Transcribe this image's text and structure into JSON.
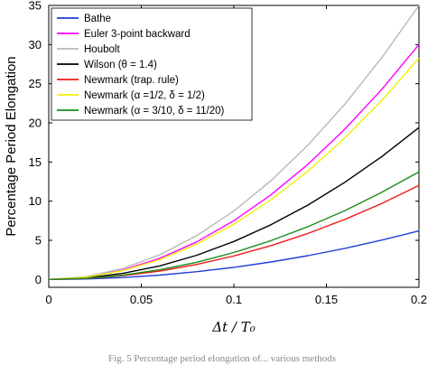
{
  "chart_data": {
    "type": "line",
    "title": "",
    "xlabel": "Δt / T₀",
    "ylabel": "Percentage  Period  Elongation",
    "xlim": [
      0,
      0.2
    ],
    "ylim": [
      -1,
      35
    ],
    "x_ticks": [
      0,
      0.05,
      0.1,
      0.15,
      0.2
    ],
    "x_tick_labels": [
      "0",
      "0.05",
      "0.1",
      "0.15",
      "0.2"
    ],
    "y_ticks": [
      0,
      5,
      10,
      15,
      20,
      25,
      30,
      35
    ],
    "y_tick_labels": [
      "0",
      "5",
      "10",
      "15",
      "20",
      "25",
      "30",
      "35"
    ],
    "grid": false,
    "legend_position": "top-left",
    "x": [
      0,
      0.02,
      0.04,
      0.06,
      0.08,
      0.1,
      0.12,
      0.14,
      0.16,
      0.18,
      0.2
    ],
    "series": [
      {
        "name": "Bathe",
        "color": "#1f3fd6",
        "values": [
          0,
          0.06,
          0.25,
          0.56,
          1.0,
          1.55,
          2.23,
          3.04,
          3.97,
          5.03,
          6.2
        ]
      },
      {
        "name": "Euler 3-point backward",
        "color": "#ff00ff",
        "values": [
          0,
          0.3,
          1.2,
          2.7,
          4.8,
          7.5,
          10.8,
          14.7,
          19.2,
          24.3,
          30.0
        ]
      },
      {
        "name": "Houbolt",
        "color": "#b8b8b8",
        "values": [
          0,
          0.35,
          1.4,
          3.15,
          5.6,
          8.75,
          12.6,
          17.15,
          22.4,
          28.35,
          35.0
        ]
      },
      {
        "name": "Wilson (θ = 1.4)",
        "color": "#000000",
        "values": [
          0,
          0.19,
          0.78,
          1.74,
          3.1,
          4.85,
          6.98,
          9.5,
          12.42,
          15.71,
          19.4
        ]
      },
      {
        "name": "Newmark (trap. rule)",
        "color": "#ee1c1c",
        "values": [
          0,
          0.12,
          0.48,
          1.08,
          1.92,
          3.0,
          4.32,
          5.88,
          7.68,
          9.72,
          12.0
        ]
      },
      {
        "name": "Newmark (α =1/2, δ = 1/2)",
        "color": "#f0f00a",
        "values": [
          0,
          0.28,
          1.13,
          2.54,
          4.52,
          7.06,
          10.17,
          13.84,
          18.08,
          22.88,
          28.25
        ]
      },
      {
        "name": "Newmark (α = 3/10, δ = 11/20)",
        "color": "#1a8c1a",
        "values": [
          0,
          0.14,
          0.55,
          1.24,
          2.2,
          3.44,
          4.95,
          6.74,
          8.8,
          11.14,
          13.75
        ]
      }
    ],
    "caption_fragment": "Fig. 5 Percentage period elongation of... various methods"
  }
}
